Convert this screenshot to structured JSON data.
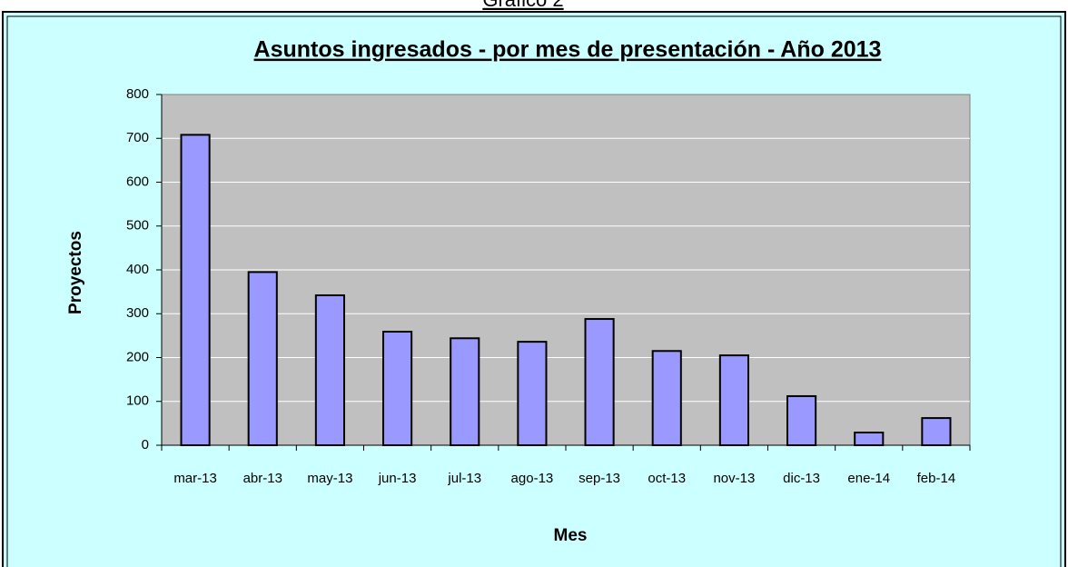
{
  "chart_data": {
    "type": "bar",
    "header": "Gráfico 2",
    "title": "Asuntos ingresados - por mes de presentación - Año 2013",
    "x_label": "Mes",
    "y_label": "Proyectos",
    "categories": [
      "mar-13",
      "abr-13",
      "may-13",
      "jun-13",
      "jul-13",
      "ago-13",
      "sep-13",
      "oct-13",
      "nov-13",
      "dic-13",
      "ene-14",
      "feb-14"
    ],
    "values": [
      708,
      395,
      342,
      259,
      244,
      236,
      288,
      215,
      205,
      112,
      29,
      62
    ],
    "color": "#9999ff",
    "ylim": [
      0,
      800
    ],
    "yticks": [
      0,
      100,
      200,
      300,
      400,
      500,
      600,
      700,
      800
    ],
    "grid": true
  }
}
